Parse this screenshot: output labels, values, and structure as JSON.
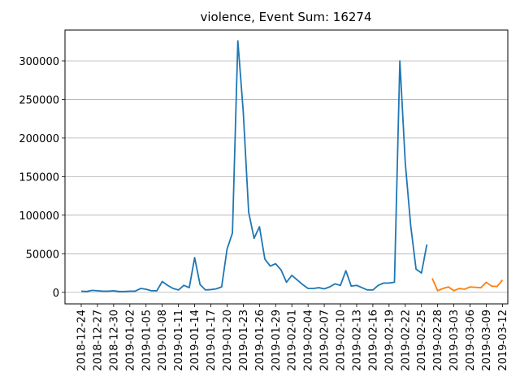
{
  "chart_data": {
    "type": "line",
    "title": "violence, Event Sum: 16274",
    "xlabel": "",
    "ylabel": "",
    "x_start": "2018-12-24",
    "x_end": "2019-03-16",
    "ylim": [
      -15000,
      340000
    ],
    "grid": "y",
    "yticks": [
      0,
      50000,
      100000,
      150000,
      200000,
      250000,
      300000
    ],
    "xticks": [
      "2018-12-24",
      "2018-12-27",
      "2018-12-30",
      "2019-01-02",
      "2019-01-05",
      "2019-01-08",
      "2019-01-11",
      "2019-01-14",
      "2019-01-17",
      "2019-01-20",
      "2019-01-23",
      "2019-01-26",
      "2019-01-29",
      "2019-02-01",
      "2019-02-04",
      "2019-02-07",
      "2019-02-10",
      "2019-02-13",
      "2019-02-16",
      "2019-02-19",
      "2019-02-22",
      "2019-02-25",
      "2019-02-28",
      "2019-03-03",
      "2019-03-06",
      "2019-03-09",
      "2019-03-12"
    ],
    "series": [
      {
        "color": "#1f77b4",
        "points": [
          [
            "2018-12-24",
            1500
          ],
          [
            "2018-12-25",
            1000
          ],
          [
            "2018-12-26",
            2500
          ],
          [
            "2018-12-27",
            2000
          ],
          [
            "2018-12-28",
            1500
          ],
          [
            "2018-12-29",
            1500
          ],
          [
            "2018-12-30",
            2000
          ],
          [
            "2018-12-31",
            1000
          ],
          [
            "2019-01-01",
            1000
          ],
          [
            "2019-01-02",
            1500
          ],
          [
            "2019-01-03",
            1500
          ],
          [
            "2019-01-04",
            5000
          ],
          [
            "2019-01-05",
            4000
          ],
          [
            "2019-01-06",
            2000
          ],
          [
            "2019-01-07",
            2000
          ],
          [
            "2019-01-08",
            14000
          ],
          [
            "2019-01-09",
            9000
          ],
          [
            "2019-01-10",
            5000
          ],
          [
            "2019-01-11",
            3000
          ],
          [
            "2019-01-12",
            9000
          ],
          [
            "2019-01-13",
            6000
          ],
          [
            "2019-01-14",
            45000
          ],
          [
            "2019-01-15",
            10000
          ],
          [
            "2019-01-16",
            3000
          ],
          [
            "2019-01-17",
            3500
          ],
          [
            "2019-01-18",
            4500
          ],
          [
            "2019-01-19",
            7000
          ],
          [
            "2019-01-20",
            56000
          ],
          [
            "2019-01-21",
            77000
          ],
          [
            "2019-01-22",
            326000
          ],
          [
            "2019-01-23",
            234000
          ],
          [
            "2019-01-24",
            104000
          ],
          [
            "2019-01-25",
            70000
          ],
          [
            "2019-01-26",
            85000
          ],
          [
            "2019-01-27",
            43000
          ],
          [
            "2019-01-28",
            34000
          ],
          [
            "2019-01-29",
            37000
          ],
          [
            "2019-01-30",
            29000
          ],
          [
            "2019-01-31",
            13000
          ],
          [
            "2019-02-01",
            22000
          ],
          [
            "2019-02-02",
            16000
          ],
          [
            "2019-02-03",
            10000
          ],
          [
            "2019-02-04",
            5000
          ],
          [
            "2019-02-05",
            5000
          ],
          [
            "2019-02-06",
            6000
          ],
          [
            "2019-02-07",
            4500
          ],
          [
            "2019-02-08",
            7000
          ],
          [
            "2019-02-09",
            11000
          ],
          [
            "2019-02-10",
            9000
          ],
          [
            "2019-02-11",
            28000
          ],
          [
            "2019-02-12",
            8000
          ],
          [
            "2019-02-13",
            9000
          ],
          [
            "2019-02-14",
            6000
          ],
          [
            "2019-02-15",
            3000
          ],
          [
            "2019-02-16",
            3000
          ],
          [
            "2019-02-17",
            9000
          ],
          [
            "2019-02-18",
            12000
          ],
          [
            "2019-02-19",
            12000
          ],
          [
            "2019-02-20",
            13000
          ],
          [
            "2019-02-21",
            300000
          ],
          [
            "2019-02-22",
            168000
          ],
          [
            "2019-02-23",
            87000
          ],
          [
            "2019-02-24",
            30000
          ],
          [
            "2019-02-25",
            25000
          ],
          [
            "2019-02-26",
            62000
          ]
        ]
      },
      {
        "color": "#ff7f0e",
        "points": [
          [
            "2019-02-27",
            18000
          ],
          [
            "2019-02-28",
            2000
          ],
          [
            "2019-03-01",
            5000
          ],
          [
            "2019-03-02",
            7000
          ],
          [
            "2019-03-03",
            2000
          ],
          [
            "2019-03-04",
            5000
          ],
          [
            "2019-03-05",
            4000
          ],
          [
            "2019-03-06",
            7000
          ],
          [
            "2019-03-07",
            6500
          ],
          [
            "2019-03-08",
            6000
          ],
          [
            "2019-03-09",
            13000
          ],
          [
            "2019-03-10",
            8000
          ],
          [
            "2019-03-11",
            7500
          ],
          [
            "2019-03-12",
            16000
          ]
        ]
      }
    ]
  }
}
